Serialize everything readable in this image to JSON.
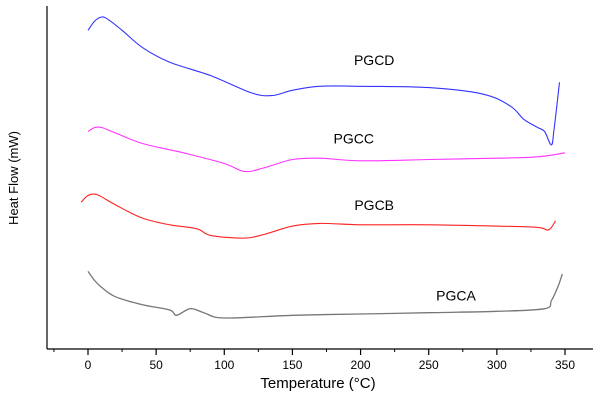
{
  "chart_data": {
    "type": "line",
    "title": "",
    "xlabel": "Temperature (°C)",
    "ylabel": "Heat Flow (mW)",
    "xlim": [
      -30,
      360
    ],
    "xticks": [
      0,
      50,
      100,
      150,
      200,
      250,
      300,
      350
    ],
    "grid": false,
    "y_tick_labels_shown": false,
    "series": [
      {
        "name": "PGCD",
        "color": "#3333ff",
        "x": [
          0,
          5,
          10,
          15,
          25,
          40,
          60,
          90,
          120,
          135,
          150,
          170,
          200,
          250,
          290,
          310,
          320,
          330,
          335,
          340,
          342,
          346
        ],
        "y": [
          12.3,
          13.0,
          13.3,
          13.1,
          12.3,
          11.0,
          9.9,
          8.9,
          7.6,
          7.4,
          7.8,
          8.1,
          8.1,
          8.0,
          7.5,
          6.6,
          5.6,
          5.0,
          4.7,
          3.7,
          4.9,
          8.4
        ]
      },
      {
        "name": "PGCC",
        "color": "#ff33ff",
        "x": [
          0,
          5,
          10,
          20,
          40,
          70,
          100,
          115,
          130,
          150,
          170,
          200,
          250,
          300,
          330,
          350
        ],
        "y": [
          4.7,
          5.0,
          5.0,
          4.6,
          3.8,
          3.1,
          2.3,
          1.7,
          2.0,
          2.6,
          2.7,
          2.5,
          2.6,
          2.7,
          2.8,
          3.1
        ]
      },
      {
        "name": "PGCB",
        "color": "#ff2222",
        "x": [
          -5,
          0,
          5,
          10,
          20,
          40,
          60,
          80,
          90,
          115,
          130,
          150,
          170,
          200,
          250,
          300,
          330,
          337,
          340,
          343
        ],
        "y": [
          -0.6,
          -0.1,
          0.0,
          -0.2,
          -0.8,
          -1.8,
          -2.3,
          -2.6,
          -3.1,
          -3.3,
          -3.0,
          -2.4,
          -2.2,
          -2.3,
          -2.3,
          -2.4,
          -2.5,
          -2.7,
          -2.5,
          -2.0
        ]
      },
      {
        "name": "PGCA",
        "color": "#777777",
        "x": [
          0,
          5,
          10,
          20,
          40,
          60,
          65,
          75,
          85,
          100,
          150,
          200,
          250,
          300,
          335,
          340,
          345,
          348
        ],
        "y": [
          -5.8,
          -6.5,
          -7.0,
          -7.7,
          -8.3,
          -8.7,
          -9.1,
          -8.6,
          -8.9,
          -9.3,
          -9.1,
          -9.0,
          -8.9,
          -8.8,
          -8.6,
          -8.0,
          -6.9,
          -6.0
        ]
      }
    ],
    "annotations": [
      {
        "text": "PGCD",
        "series": "PGCD",
        "x": 210,
        "y": 9.7
      },
      {
        "text": "PGCC",
        "series": "PGCC",
        "x": 195,
        "y": 3.8
      },
      {
        "text": "PGCB",
        "series": "PGCB",
        "x": 210,
        "y": -1.2
      },
      {
        "text": "PGCA",
        "series": "PGCA",
        "x": 270,
        "y": -8.0
      }
    ]
  }
}
